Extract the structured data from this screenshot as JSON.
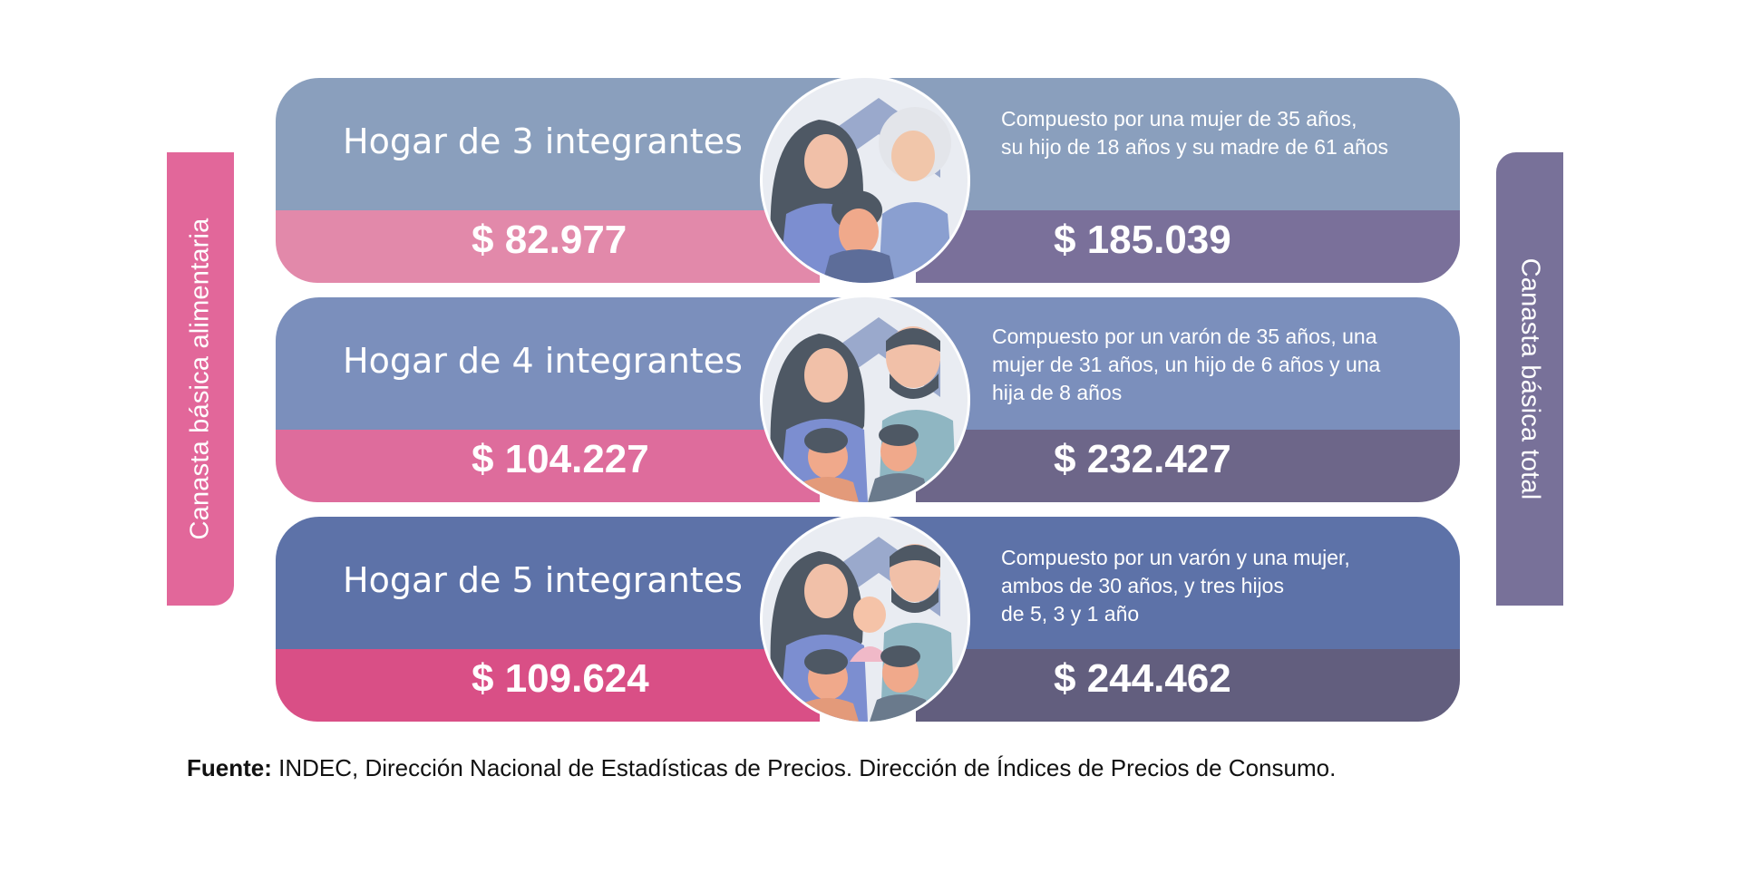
{
  "side_labels": {
    "left": "Canasta básica alimentaria",
    "right": "Canasta básica total"
  },
  "households": [
    {
      "title": "Hogar de 3 integrantes",
      "description_lines": [
        "Compuesto por una mujer de 35 años,",
        "su hijo de 18 años y su madre de 61 años"
      ],
      "cba": "$ 82.977",
      "cbt": "$ 185.039",
      "top_color": "#8a9fbd",
      "cba_color": "#e289aa",
      "cbt_color": "#7a709a",
      "illustration": "family-of-three-icon"
    },
    {
      "title": "Hogar de 4 integrantes",
      "description_lines": [
        "Compuesto por un varón de 35 años, una",
        "mujer de 31 años, un hijo de 6 años y una",
        "hija de 8 años"
      ],
      "cba": "$ 104.227",
      "cbt": "$ 232.427",
      "top_color": "#7b8fbc",
      "cba_color": "#de6c9c",
      "cbt_color": "#6d6689",
      "illustration": "family-of-four-icon"
    },
    {
      "title": "Hogar de 5 integrantes",
      "description_lines": [
        "Compuesto por un varón y una mujer,",
        "ambos de 30 años, y tres hijos",
        "de 5, 3 y 1 año"
      ],
      "cba": "$ 109.624",
      "cbt": "$ 244.462",
      "top_color": "#5d72a8",
      "cba_color": "#d94f86",
      "cbt_color": "#625e7e",
      "illustration": "family-of-five-icon"
    }
  ],
  "footer": {
    "label": "Fuente:",
    "text": " INDEC, Dirección Nacional de Estadísticas de Precios. Dirección de Índices de Precios de Consumo."
  }
}
